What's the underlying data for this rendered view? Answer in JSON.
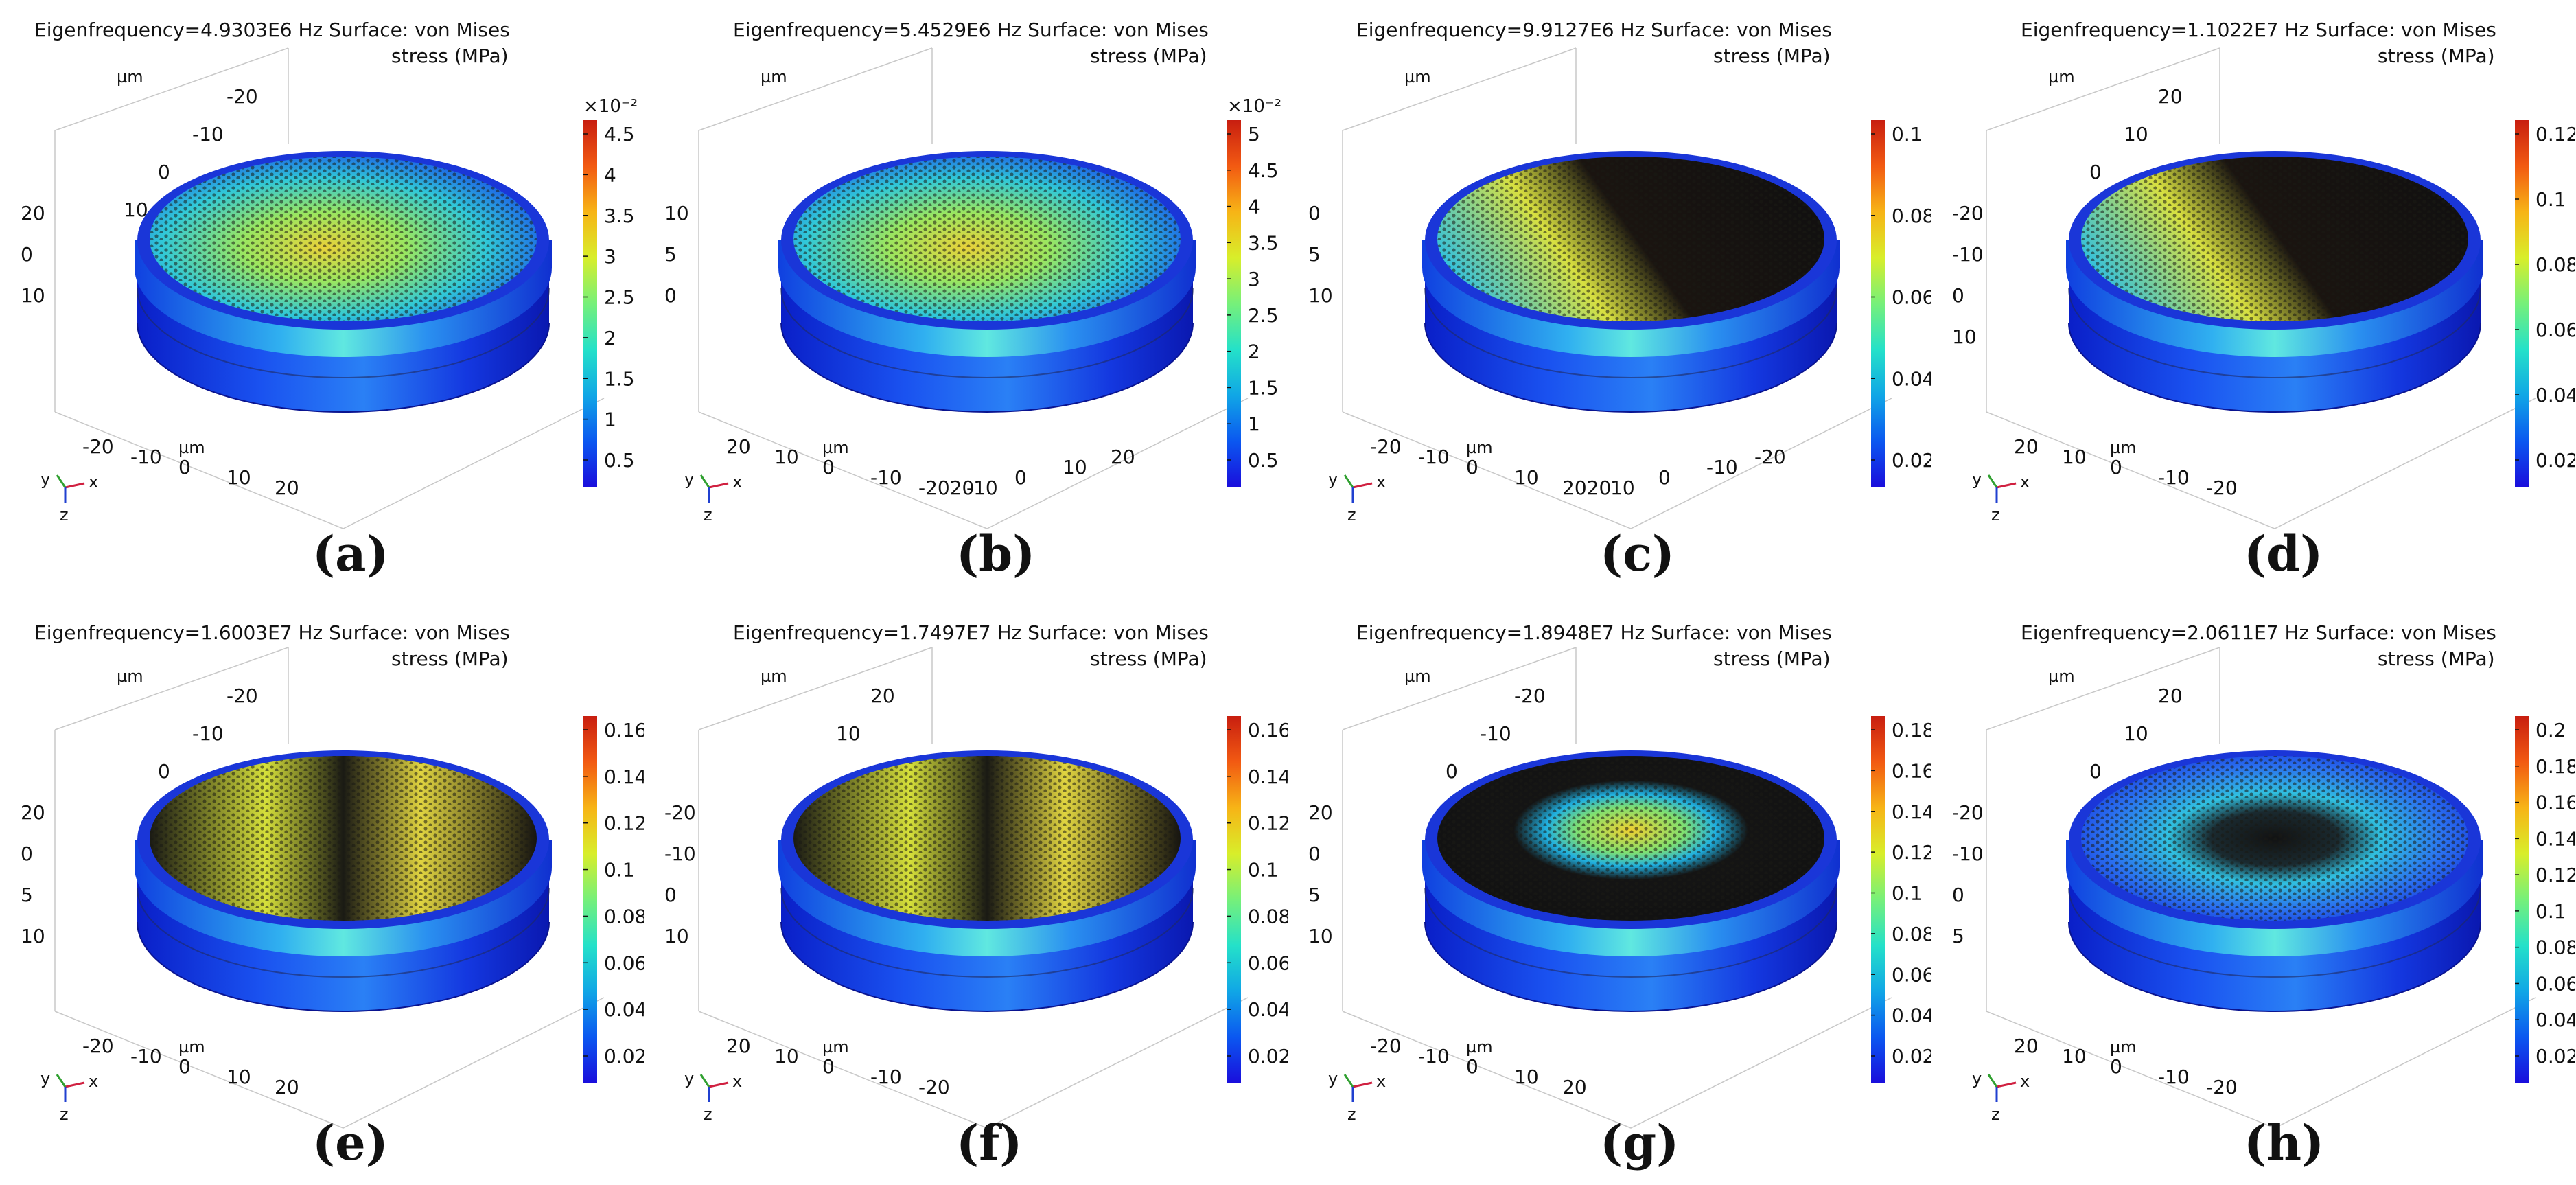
{
  "colors": {
    "rainbow": [
      "#1a0ddc",
      "#0b57f0",
      "#10a6e6",
      "#24e1c9",
      "#76f07a",
      "#d8ee2a",
      "#f7b416",
      "#f25a12",
      "#c81e10"
    ],
    "stripe": "#1f1a14"
  },
  "panels": [
    {
      "id": "a",
      "caption": "(a)",
      "title1": "Eigenfrequency=4.9303E6 Hz Surface: von Mises",
      "title2": "stress (MPa)",
      "ticks": [
        "4.5",
        "4",
        "3.5",
        "3",
        "2.5",
        "2",
        "1.5",
        "1",
        "0.5"
      ],
      "multiplier": "×10⁻²",
      "mode": "center",
      "axis_left": [
        "20",
        "0",
        "10"
      ],
      "axis_top": [
        "-20",
        "-10",
        "0",
        "10"
      ],
      "axis_bottom": [
        "-20",
        "-10",
        "0",
        "10",
        "20"
      ],
      "unit": "µm"
    },
    {
      "id": "b",
      "caption": "(b)",
      "title1": "Eigenfrequency=5.4529E6 Hz Surface: von Mises",
      "title2": "stress (MPa)",
      "ticks": [
        "5",
        "4.5",
        "4",
        "3.5",
        "3",
        "2.5",
        "2",
        "1.5",
        "1",
        "0.5"
      ],
      "multiplier": "×10⁻²",
      "mode": "center",
      "axis_left": [
        "10",
        "5",
        "0"
      ],
      "axis_top": [],
      "axis_bottom": [
        "20",
        "10",
        "0",
        "-10",
        "-2020",
        "-10",
        "0",
        "10",
        "20"
      ],
      "unit": "µm"
    },
    {
      "id": "c",
      "caption": "(c)",
      "title1": "Eigenfrequency=9.9127E6 Hz Surface: von Mises",
      "title2": "stress (MPa)",
      "ticks": [
        "0.1",
        "0.08",
        "0.06",
        "0.04",
        "0.02"
      ],
      "multiplier": "",
      "mode": "half",
      "axis_left": [
        "0",
        "5",
        "10"
      ],
      "axis_top": [],
      "axis_bottom": [
        "-20",
        "-10",
        "0",
        "10",
        "2020",
        "10",
        "0",
        "-10",
        "-20"
      ],
      "unit": "µm"
    },
    {
      "id": "d",
      "caption": "(d)",
      "title1": "Eigenfrequency=1.1022E7 Hz Surface: von Mises",
      "title2": "stress (MPa)",
      "ticks": [
        "0.12",
        "0.1",
        "0.08",
        "0.06",
        "0.04",
        "0.02"
      ],
      "multiplier": "",
      "mode": "half",
      "axis_left": [
        "-20",
        "-10",
        "0",
        "10"
      ],
      "axis_top": [
        "20",
        "10",
        "0"
      ],
      "axis_bottom": [
        "20",
        "10",
        "0",
        "-10",
        "-20"
      ],
      "unit": "µm"
    },
    {
      "id": "e",
      "caption": "(e)",
      "title1": "Eigenfrequency=1.6003E7 Hz Surface: von Mises",
      "title2": "stress (MPa)",
      "ticks": [
        "0.16",
        "0.14",
        "0.12",
        "0.1",
        "0.08",
        "0.06",
        "0.04",
        "0.02"
      ],
      "multiplier": "",
      "mode": "quad",
      "axis_left": [
        "20",
        "0",
        "5",
        "10"
      ],
      "axis_top": [
        "-20",
        "-10",
        "0"
      ],
      "axis_bottom": [
        "-20",
        "-10",
        "0",
        "10",
        "20"
      ],
      "unit": "µm"
    },
    {
      "id": "f",
      "caption": "(f)",
      "title1": "Eigenfrequency=1.7497E7 Hz Surface: von Mises",
      "title2": "stress (MPa)",
      "ticks": [
        "0.16",
        "0.14",
        "0.12",
        "0.1",
        "0.08",
        "0.06",
        "0.04",
        "0.02"
      ],
      "multiplier": "",
      "mode": "quad",
      "axis_left": [
        "-20",
        "-10",
        "0",
        "10"
      ],
      "axis_top": [
        "20",
        "10"
      ],
      "axis_bottom": [
        "20",
        "10",
        "0",
        "-10",
        "-20"
      ],
      "unit": "µm"
    },
    {
      "id": "g",
      "caption": "(g)",
      "title1": "Eigenfrequency=1.8948E7 Hz Surface: von Mises",
      "title2": "stress (MPa)",
      "ticks": [
        "0.18",
        "0.16",
        "0.14",
        "0.12",
        "0.1",
        "0.08",
        "0.06",
        "0.04",
        "0.02"
      ],
      "multiplier": "",
      "mode": "dome",
      "axis_left": [
        "20",
        "0",
        "5",
        "10"
      ],
      "axis_top": [
        "-20",
        "-10",
        "0"
      ],
      "axis_bottom": [
        "-20",
        "-10",
        "0",
        "10",
        "20"
      ],
      "unit": "µm"
    },
    {
      "id": "h",
      "caption": "(h)",
      "title1": "Eigenfrequency=2.0611E7 Hz Surface: von Mises",
      "title2": "stress (MPa)",
      "ticks": [
        "0.2",
        "0.18",
        "0.16",
        "0.14",
        "0.12",
        "0.1",
        "0.08",
        "0.06",
        "0.04",
        "0.02"
      ],
      "multiplier": "",
      "mode": "ring",
      "axis_left": [
        "-20",
        "-10",
        "0",
        "5"
      ],
      "axis_top": [
        "20",
        "10",
        "0"
      ],
      "axis_bottom": [
        "20",
        "10",
        "0",
        "-10",
        "-20"
      ],
      "unit": "µm"
    }
  ],
  "axis_triad": {
    "x": "x",
    "y": "y",
    "z": "z"
  }
}
